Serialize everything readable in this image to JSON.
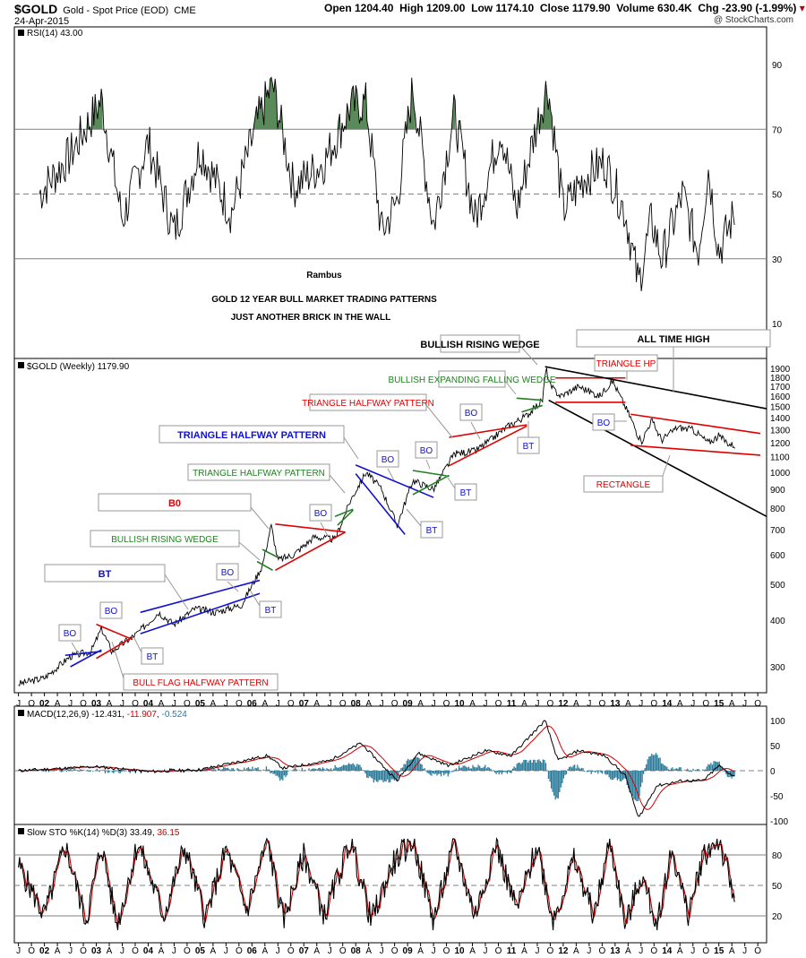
{
  "header": {
    "symbol": "$GOLD",
    "description": "Gold - Spot Price (EOD)",
    "exchange": "CME",
    "date": "24-Apr-2015",
    "open": "Open 1204.40",
    "high": "High 1209.00",
    "low": "Low 1174.10",
    "close": "Close 1179.90",
    "volume": "Volume 630.4K",
    "change": "Chg -23.90 (-1.99%)",
    "credit": "@ StockCharts.com"
  },
  "colors": {
    "price": "#000000",
    "annotation_red": "#e00000",
    "annotation_blue": "#1010d0",
    "annotation_green": "#208020",
    "annotation_black": "#000000",
    "macd_signal": "#d00000",
    "macd_hist": "#2a7a9a",
    "stoch_d": "#c00000",
    "rsi_fill": "#5a8a5a",
    "grid": "#808080"
  },
  "chart_data": [
    {
      "type": "line",
      "panel": "rsi",
      "label": "RSI(14) 43.00",
      "yticks": [
        10,
        30,
        50,
        70,
        90
      ],
      "ylim": [
        0,
        100
      ],
      "levels": [
        30,
        70
      ],
      "midline": 50,
      "x": [
        2001.9,
        2002.5,
        2003.1,
        2003.5,
        2004.0,
        2004.5,
        2005.0,
        2005.6,
        2006.1,
        2006.4,
        2006.8,
        2007.4,
        2007.9,
        2008.2,
        2008.5,
        2008.8,
        2009.1,
        2009.5,
        2009.9,
        2010.3,
        2010.8,
        2011.1,
        2011.5,
        2011.7,
        2012.0,
        2012.4,
        2012.8,
        2013.2,
        2013.45,
        2013.7,
        2013.9,
        2014.3,
        2014.6,
        2014.8,
        2015.0,
        2015.3
      ],
      "values": [
        50,
        62,
        79,
        42,
        66,
        38,
        64,
        44,
        72,
        84,
        52,
        60,
        77,
        78,
        38,
        48,
        83,
        40,
        75,
        42,
        70,
        45,
        72,
        84,
        45,
        55,
        60,
        44,
        22,
        42,
        30,
        50,
        32,
        58,
        32,
        44
      ]
    },
    {
      "type": "line",
      "panel": "price",
      "label": "$GOLD (Weekly) 1179.90",
      "title": "GOLD 12 YEAR BULL MARKET TRADING PATTERNS",
      "subtitle": "JUST ANOTHER BRICK IN THE WALL",
      "author": "Rambus",
      "scale": "log",
      "yticks": [
        300,
        400,
        500,
        600,
        700,
        800,
        900,
        1000,
        1100,
        1200,
        1300,
        1400,
        1500,
        1600,
        1700,
        1800,
        1900
      ],
      "x_labels": [
        "J",
        "O",
        "02",
        "A",
        "J",
        "O",
        "03",
        "A",
        "J",
        "O",
        "04",
        "A",
        "J",
        "O",
        "05",
        "A",
        "J",
        "O",
        "06",
        "A",
        "J",
        "O",
        "07",
        "A",
        "J",
        "O",
        "08",
        "A",
        "J",
        "O",
        "09",
        "A",
        "J",
        "O",
        "10",
        "A",
        "J",
        "O",
        "11",
        "A",
        "J",
        "O",
        "12",
        "A",
        "J",
        "O",
        "13",
        "A",
        "J",
        "O",
        "14",
        "A",
        "J",
        "O",
        "15",
        "A",
        "J",
        "O"
      ],
      "x": [
        2001.5,
        2002.0,
        2002.5,
        2002.9,
        2003.1,
        2003.3,
        2003.8,
        2004.2,
        2004.5,
        2004.9,
        2005.3,
        2005.8,
        2006.2,
        2006.37,
        2006.5,
        2006.8,
        2007.2,
        2007.6,
        2007.9,
        2008.2,
        2008.5,
        2008.8,
        2009.1,
        2009.5,
        2009.9,
        2010.3,
        2010.6,
        2010.9,
        2011.3,
        2011.6,
        2011.67,
        2011.75,
        2011.95,
        2012.3,
        2012.7,
        2012.95,
        2013.3,
        2013.5,
        2013.7,
        2013.9,
        2014.2,
        2014.5,
        2014.8,
        2015.0,
        2015.2,
        2015.31
      ],
      "values": [
        270,
        280,
        320,
        330,
        380,
        330,
        370,
        420,
        390,
        430,
        420,
        440,
        560,
        720,
        580,
        600,
        670,
        660,
        840,
        1000,
        900,
        720,
        950,
        900,
        1120,
        1140,
        1220,
        1320,
        1420,
        1560,
        1900,
        1700,
        1600,
        1700,
        1600,
        1760,
        1400,
        1200,
        1380,
        1220,
        1320,
        1300,
        1200,
        1250,
        1190,
        1180
      ],
      "annotations": [
        "BO",
        "BO",
        "BT",
        "BO",
        "BT",
        "BO",
        "BT",
        "BO",
        "BO",
        "BT",
        "BO",
        "BT",
        "BO",
        "BT",
        "B0",
        "BULLISH RISING WEDGE",
        "TRIANGLE HALFWAY PATTERN",
        "BULL FLAG HALFWAY PATTERN",
        "TRIANGLE HALFWAY PATTERN",
        "TRIANGLE HALFWAY PATTERN",
        "BULLISH EXPANDING FALLING WEDGE",
        "BULLISH RISING WEDGE",
        "TRIANGLE HP",
        "ALL TIME HIGH",
        "RECTANGLE",
        "BULLISH EXPANDING FALLING WEDGE",
        "FALLING WEDGE"
      ]
    },
    {
      "type": "line",
      "panel": "macd",
      "label": "MACD(12,26,9)",
      "value_macd": "-12.431",
      "value_signal": "-11.907",
      "value_hist": "-0.524",
      "yticks": [
        -100,
        -50,
        0,
        50,
        100
      ],
      "x": [
        2001.5,
        2003.0,
        2004.0,
        2005.0,
        2006.3,
        2006.6,
        2007.5,
        2008.1,
        2008.8,
        2009.2,
        2009.8,
        2010.5,
        2011.0,
        2011.65,
        2011.9,
        2012.3,
        2012.8,
        2013.2,
        2013.45,
        2013.8,
        2014.3,
        2014.7,
        2015.0,
        2015.3
      ],
      "values": [
        0,
        8,
        -2,
        2,
        30,
        5,
        20,
        55,
        -20,
        35,
        10,
        40,
        30,
        100,
        20,
        40,
        30,
        -10,
        -95,
        -30,
        -20,
        -20,
        10,
        -12
      ]
    },
    {
      "type": "line",
      "panel": "stoch",
      "label": "Slow STO %K(14) %D(3)",
      "value_k": "33.49",
      "value_d": "36.15",
      "yticks": [
        20,
        50,
        80
      ],
      "levels": [
        20,
        80
      ],
      "midline": 50,
      "x": [
        2001.5,
        2002.0,
        2002.4,
        2002.8,
        2003.1,
        2003.4,
        2003.8,
        2004.3,
        2004.7,
        2005.1,
        2005.5,
        2005.9,
        2006.3,
        2006.6,
        2007.0,
        2007.4,
        2007.9,
        2008.3,
        2008.7,
        2009.1,
        2009.5,
        2009.9,
        2010.3,
        2010.7,
        2011.1,
        2011.5,
        2011.8,
        2012.2,
        2012.6,
        2012.9,
        2013.2,
        2013.5,
        2013.8,
        2014.1,
        2014.4,
        2014.7,
        2015.0,
        2015.3
      ],
      "values": [
        70,
        20,
        90,
        15,
        90,
        10,
        92,
        20,
        88,
        18,
        85,
        25,
        95,
        15,
        80,
        20,
        95,
        15,
        70,
        95,
        15,
        90,
        20,
        92,
        25,
        90,
        15,
        75,
        20,
        95,
        10,
        60,
        12,
        85,
        20,
        80,
        95,
        35
      ]
    }
  ]
}
